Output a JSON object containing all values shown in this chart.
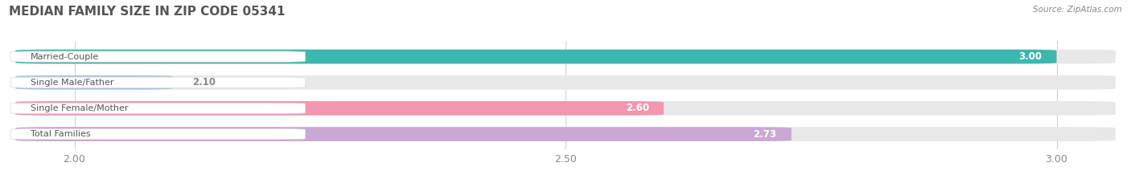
{
  "title": "MEDIAN FAMILY SIZE IN ZIP CODE 05341",
  "source": "Source: ZipAtlas.com",
  "categories": [
    "Married-Couple",
    "Single Male/Father",
    "Single Female/Mother",
    "Total Families"
  ],
  "values": [
    3.0,
    2.1,
    2.6,
    2.73
  ],
  "bar_colors": [
    "#3ab8b0",
    "#aac4e8",
    "#f297b2",
    "#c9a8d4"
  ],
  "bg_bar_color": "#e8e8e8",
  "xlim_min": 1.93,
  "xlim_max": 3.07,
  "data_min": 2.0,
  "xticks": [
    2.0,
    2.5,
    3.0
  ],
  "xtick_labels": [
    "2.00",
    "2.50",
    "3.00"
  ],
  "bar_height": 0.55,
  "title_fontsize": 11,
  "tick_fontsize": 9,
  "category_fontsize": 8,
  "value_fontsize": 8.5,
  "background_color": "#ffffff",
  "grid_color": "#cccccc",
  "pill_color": "#ffffff",
  "pill_border_color": "#dddddd",
  "label_color": "#555555",
  "value_color_inside": "#ffffff",
  "value_color_outside": "#888888"
}
